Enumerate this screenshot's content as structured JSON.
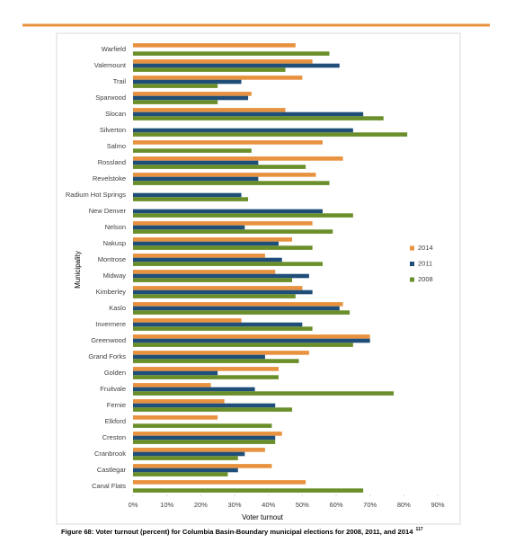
{
  "chart_data": {
    "type": "hbar",
    "categories": [
      "Warfield",
      "Valemount",
      "Trail",
      "Sparwood",
      "Slocan",
      "Silverton",
      "Salmo",
      "Rossland",
      "Revelstoke",
      "Radium Hot Springs",
      "New Denver",
      "Nelson",
      "Nakusp",
      "Montrose",
      "Midway",
      "Kimberley",
      "Kaslo",
      "Invermere",
      "Greenwood",
      "Grand Forks",
      "Golden",
      "Fruitvale",
      "Fernie",
      "Elkford",
      "Creston",
      "Cranbrook",
      "Castlegar",
      "Canal Flats"
    ],
    "series": [
      {
        "name": "2014",
        "color": "#e8913f",
        "values": [
          48,
          53,
          50,
          35,
          45,
          null,
          56,
          62,
          54,
          null,
          null,
          53,
          47,
          39,
          42,
          50,
          62,
          32,
          70,
          52,
          43,
          23,
          27,
          25,
          44,
          39,
          41,
          51
        ]
      },
      {
        "name": "2011",
        "color": "#1f4e79",
        "values": [
          null,
          61,
          32,
          34,
          68,
          65,
          null,
          37,
          37,
          32,
          56,
          33,
          43,
          44,
          52,
          53,
          61,
          50,
          70,
          39,
          25,
          36,
          42,
          null,
          42,
          33,
          31,
          null
        ]
      },
      {
        "name": "2008",
        "color": "#6a8f2a",
        "values": [
          58,
          45,
          25,
          25,
          74,
          81,
          35,
          51,
          58,
          34,
          65,
          59,
          53,
          56,
          47,
          48,
          64,
          53,
          65,
          49,
          43,
          77,
          47,
          41,
          42,
          31,
          28,
          68
        ]
      }
    ],
    "xlim": [
      0,
      90
    ],
    "xticks": [
      {
        "value": 0,
        "label": "0%"
      },
      {
        "value": 10,
        "label": "10%"
      },
      {
        "value": 20,
        "label": "20%"
      },
      {
        "value": 30,
        "label": "30%"
      },
      {
        "value": 40,
        "label": "40%"
      },
      {
        "value": 50,
        "label": "50%"
      },
      {
        "value": 60,
        "label": "60%"
      },
      {
        "value": 70,
        "label": "70%"
      },
      {
        "value": 80,
        "label": "80%"
      },
      {
        "value": 90,
        "label": "90%"
      }
    ],
    "xlabel": "Voter turnout",
    "ylabel": "Municipality",
    "grid": false,
    "legend": "right"
  },
  "caption": "Figure 68: Voter turnout (percent) for Columbia Basin-Boundary municipal elections for 2008, 2011, and 2014",
  "caption_sup": "117"
}
